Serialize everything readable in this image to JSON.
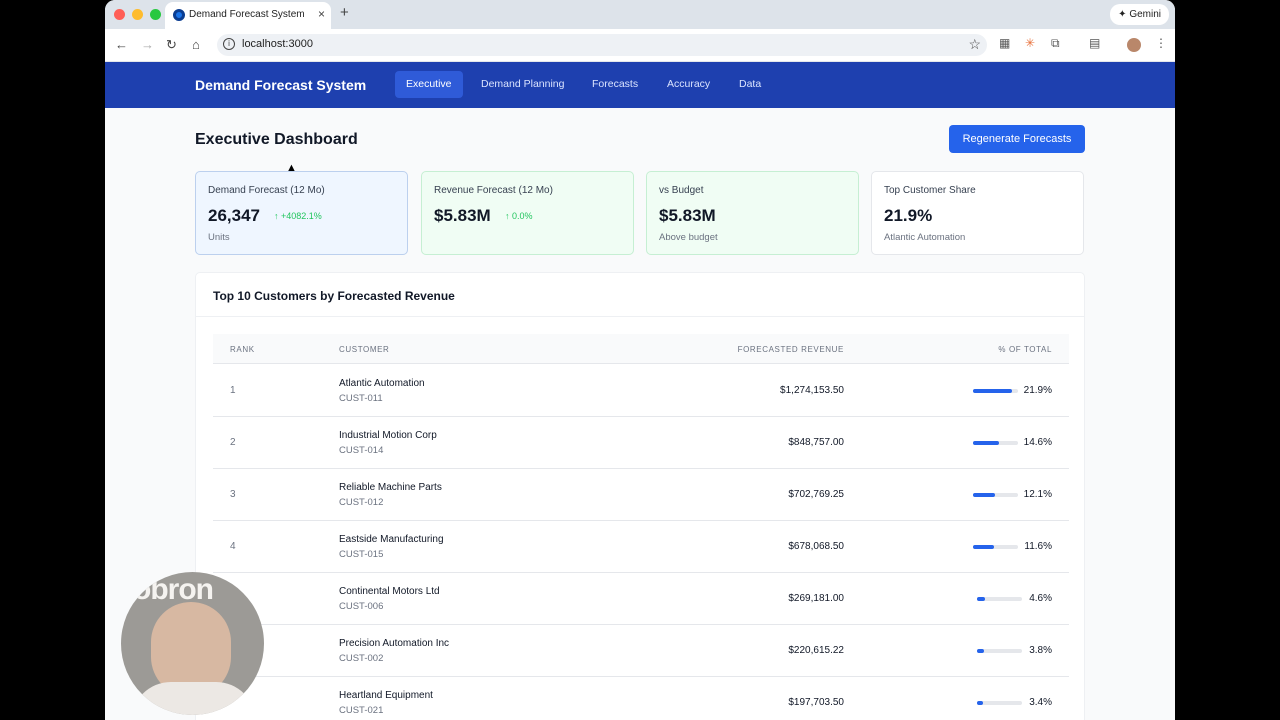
{
  "browser": {
    "tab_title": "Demand Forecast System",
    "new_tab": "+",
    "close": "×",
    "url": "localhost:3000",
    "gemini_label": "Gemini"
  },
  "app": {
    "brand": "Demand Forecast System",
    "nav": [
      "Executive",
      "Demand Planning",
      "Forecasts",
      "Accuracy",
      "Data"
    ],
    "active_nav": "Executive"
  },
  "page": {
    "title": "Executive Dashboard",
    "regen_button": "Regenerate Forecasts"
  },
  "kpis": [
    {
      "label": "Demand Forecast (12 Mo)",
      "value": "26,347",
      "delta": "+4082.1%",
      "sub": "Units"
    },
    {
      "label": "Revenue Forecast (12 Mo)",
      "value": "$5.83M",
      "delta": "0.0%",
      "sub": ""
    },
    {
      "label": "vs Budget",
      "value": "$5.83M",
      "delta": "",
      "sub": "Above budget"
    },
    {
      "label": "Top Customer Share",
      "value": "21.9%",
      "delta": "",
      "sub": "Atlantic Automation"
    }
  ],
  "table": {
    "title": "Top 10 Customers by Forecasted Revenue",
    "headers": [
      "RANK",
      "CUSTOMER",
      "FORECASTED REVENUE",
      "% OF TOTAL"
    ],
    "rows": [
      {
        "rank": "1",
        "name": "Atlantic Automation",
        "id": "CUST-011",
        "revenue": "$1,274,153.50",
        "pct": "21.9%",
        "share": 0.219
      },
      {
        "rank": "2",
        "name": "Industrial Motion Corp",
        "id": "CUST-014",
        "revenue": "$848,757.00",
        "pct": "14.6%",
        "share": 0.146
      },
      {
        "rank": "3",
        "name": "Reliable Machine Parts",
        "id": "CUST-012",
        "revenue": "$702,769.25",
        "pct": "12.1%",
        "share": 0.121
      },
      {
        "rank": "4",
        "name": "Eastside Manufacturing",
        "id": "CUST-015",
        "revenue": "$678,068.50",
        "pct": "11.6%",
        "share": 0.116
      },
      {
        "rank": "",
        "name": "Continental Motors Ltd",
        "id": "CUST-006",
        "revenue": "$269,181.00",
        "pct": "4.6%",
        "share": 0.046
      },
      {
        "rank": "",
        "name": "Precision Automation Inc",
        "id": "CUST-002",
        "revenue": "$220,615.22",
        "pct": "3.8%",
        "share": 0.038
      },
      {
        "rank": "",
        "name": "Heartland Equipment",
        "id": "CUST-021",
        "revenue": "$197,703.50",
        "pct": "3.4%",
        "share": 0.034
      }
    ]
  },
  "webcam": {
    "overlay_text": "obron"
  },
  "colors": {
    "nav_bg": "#1e40af",
    "accent": "#2563eb",
    "positive": "#22c55e"
  }
}
